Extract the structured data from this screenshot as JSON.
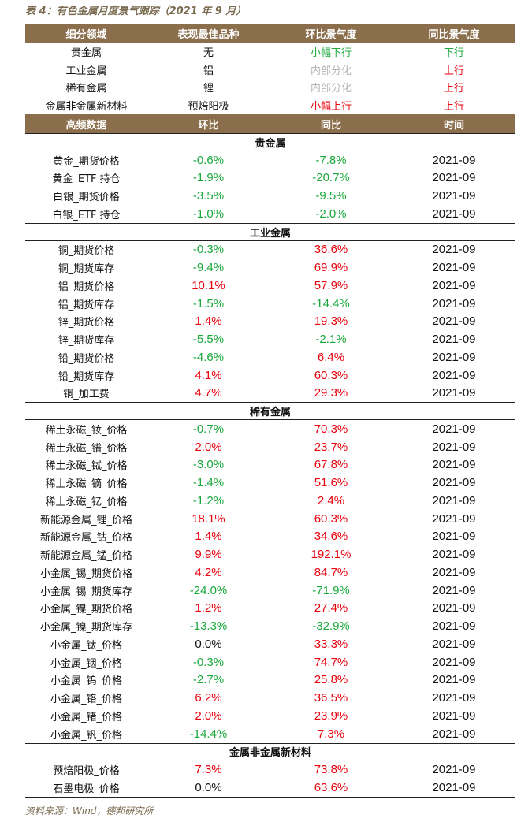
{
  "title": "表 4：有色金属月度景气跟踪（2021 年 9 月）",
  "summary_header": [
    "细分领域",
    "表现最佳品种",
    "环比景气度",
    "同比景气度"
  ],
  "summary_rows": [
    {
      "domain": "贵金属",
      "best": "无",
      "mom": "小幅下行",
      "mom_color": "#1aa83c",
      "yoy": "下行",
      "yoy_color": "#1aa83c"
    },
    {
      "domain": "工业金属",
      "best": "铝",
      "mom": "内部分化",
      "mom_color": "#b5b5b5",
      "yoy": "上行",
      "yoy_color": "#e8000b"
    },
    {
      "domain": "稀有金属",
      "best": "锂",
      "mom": "内部分化",
      "mom_color": "#b5b5b5",
      "yoy": "上行",
      "yoy_color": "#e8000b"
    },
    {
      "domain": "金属非金属新材料",
      "best": "预焙阳极",
      "mom": "小幅上行",
      "mom_color": "#e8000b",
      "yoy": "上行",
      "yoy_color": "#e8000b"
    }
  ],
  "data_header": [
    "高频数据",
    "环比",
    "同比",
    "时间"
  ],
  "sections": [
    {
      "name": "贵金属",
      "rows": [
        {
          "item": "黄金_期货价格",
          "mom": "-0.6%",
          "yoy": "-7.8%",
          "time": "2021-09"
        },
        {
          "item": "黄金_ETF 持仓",
          "mom": "-1.9%",
          "yoy": "-20.7%",
          "time": "2021-09"
        },
        {
          "item": "白银_期货价格",
          "mom": "-3.5%",
          "yoy": "-9.5%",
          "time": "2021-09"
        },
        {
          "item": "白银_ETF 持仓",
          "mom": "-1.0%",
          "yoy": "-2.0%",
          "time": "2021-09"
        }
      ]
    },
    {
      "name": "工业金属",
      "rows": [
        {
          "item": "铜_期货价格",
          "mom": "-0.3%",
          "yoy": "36.6%",
          "time": "2021-09"
        },
        {
          "item": "铜_期货库存",
          "mom": "-9.4%",
          "yoy": "69.9%",
          "time": "2021-09"
        },
        {
          "item": "铝_期货价格",
          "mom": "10.1%",
          "yoy": "57.9%",
          "time": "2021-09"
        },
        {
          "item": "铝_期货库存",
          "mom": "-1.5%",
          "yoy": "-14.4%",
          "time": "2021-09"
        },
        {
          "item": "锌_期货价格",
          "mom": "1.4%",
          "yoy": "19.3%",
          "time": "2021-09"
        },
        {
          "item": "锌_期货库存",
          "mom": "-5.5%",
          "yoy": "-2.1%",
          "time": "2021-09"
        },
        {
          "item": "铅_期货价格",
          "mom": "-4.6%",
          "yoy": "6.4%",
          "time": "2021-09"
        },
        {
          "item": "铅_期货库存",
          "mom": "4.1%",
          "yoy": "60.3%",
          "time": "2021-09"
        },
        {
          "item": "铜_加工费",
          "mom": "4.7%",
          "yoy": "29.3%",
          "time": "2021-09"
        }
      ]
    },
    {
      "name": "稀有金属",
      "rows": [
        {
          "item": "稀土永磁_钕_价格",
          "mom": "-0.7%",
          "yoy": "70.3%",
          "time": "2021-09"
        },
        {
          "item": "稀土永磁_镨_价格",
          "mom": "2.0%",
          "yoy": "23.7%",
          "time": "2021-09"
        },
        {
          "item": "稀土永磁_铽_价格",
          "mom": "-3.0%",
          "yoy": "67.8%",
          "time": "2021-09"
        },
        {
          "item": "稀土永磁_镝_价格",
          "mom": "-1.4%",
          "yoy": "51.6%",
          "time": "2021-09"
        },
        {
          "item": "稀土永磁_钇_价格",
          "mom": "-1.2%",
          "yoy": "2.4%",
          "time": "2021-09"
        },
        {
          "item": "新能源金属_锂_价格",
          "mom": "18.1%",
          "yoy": "60.3%",
          "time": "2021-09"
        },
        {
          "item": "新能源金属_钴_价格",
          "mom": "1.4%",
          "yoy": "34.6%",
          "time": "2021-09"
        },
        {
          "item": "新能源金属_锰_价格",
          "mom": "9.9%",
          "yoy": "192.1%",
          "time": "2021-09"
        },
        {
          "item": "小金属_锡_期货价格",
          "mom": "4.2%",
          "yoy": "84.7%",
          "time": "2021-09"
        },
        {
          "item": "小金属_锡_期货库存",
          "mom": "-24.0%",
          "yoy": "-71.9%",
          "time": "2021-09"
        },
        {
          "item": "小金属_镍_期货价格",
          "mom": "1.2%",
          "yoy": "27.4%",
          "time": "2021-09"
        },
        {
          "item": "小金属_镍_期货库存",
          "mom": "-13.3%",
          "yoy": "-32.9%",
          "time": "2021-09"
        },
        {
          "item": "小金属_钛_价格",
          "mom": "0.0%",
          "yoy": "33.3%",
          "time": "2021-09"
        },
        {
          "item": "小金属_铟_价格",
          "mom": "-0.3%",
          "yoy": "74.7%",
          "time": "2021-09"
        },
        {
          "item": "小金属_钨_价格",
          "mom": "-2.7%",
          "yoy": "25.8%",
          "time": "2021-09"
        },
        {
          "item": "小金属_铬_价格",
          "mom": "6.2%",
          "yoy": "36.5%",
          "time": "2021-09"
        },
        {
          "item": "小金属_锗_价格",
          "mom": "2.0%",
          "yoy": "23.9%",
          "time": "2021-09"
        },
        {
          "item": "小金属_钒_价格",
          "mom": "-14.4%",
          "yoy": "7.3%",
          "time": "2021-09"
        }
      ]
    },
    {
      "name": "金属非金属新材料",
      "rows": [
        {
          "item": "预焙阳极_价格",
          "mom": "7.3%",
          "yoy": "73.8%",
          "time": "2021-09"
        },
        {
          "item": "石墨电极_价格",
          "mom": "0.0%",
          "yoy": "63.6%",
          "time": "2021-09"
        }
      ]
    }
  ],
  "footer": "资料来源：Wind，德邦研究所"
}
